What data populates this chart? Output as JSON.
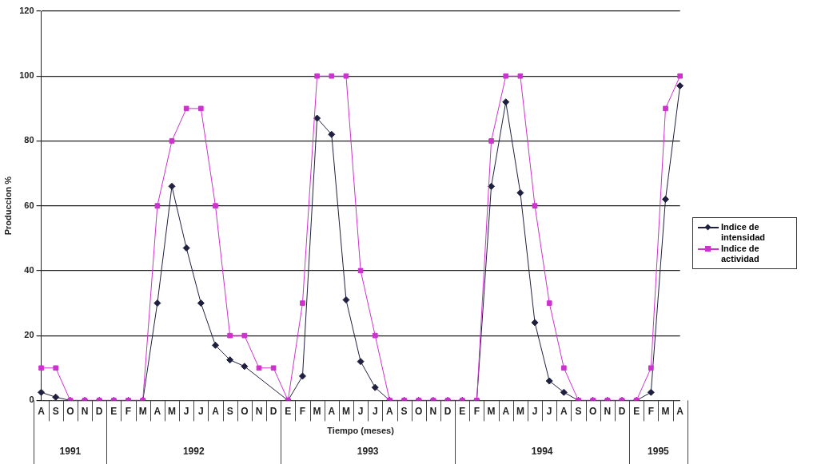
{
  "chart_data": {
    "type": "line",
    "xlabel": "Tiempo (meses)",
    "ylabel": "Produccion %",
    "categories": [
      "A",
      "S",
      "O",
      "N",
      "D",
      "E",
      "F",
      "M",
      "A",
      "M",
      "J",
      "J",
      "A",
      "S",
      "O",
      "N",
      "D",
      "E",
      "F",
      "M",
      "A",
      "M",
      "J",
      "J",
      "A",
      "S",
      "O",
      "N",
      "D",
      "E",
      "F",
      "M",
      "A",
      "M",
      "J",
      "J",
      "A",
      "S",
      "O",
      "N",
      "D",
      "E",
      "F",
      "M",
      "A"
    ],
    "series": [
      {
        "name": "Indice de intensidad",
        "color": "#1f2040",
        "marker": "diamond",
        "values": [
          2.5,
          1,
          0,
          0,
          0,
          0,
          0,
          0,
          30,
          66,
          47,
          30,
          17,
          12.5,
          10.5,
          null,
          null,
          0,
          7.5,
          87,
          82,
          31,
          12,
          4,
          0,
          0,
          0,
          0,
          0,
          0,
          0,
          66,
          92,
          64,
          24,
          6,
          2.5,
          0,
          0,
          0,
          0,
          0,
          2.5,
          62,
          97
        ]
      },
      {
        "name": "Indice de actividad",
        "color": "#cc33cc",
        "marker": "square",
        "values": [
          10,
          10,
          0,
          0,
          0,
          0,
          0,
          0,
          60,
          80,
          90,
          90,
          60,
          20,
          20,
          10,
          10,
          0,
          30,
          100,
          100,
          100,
          40,
          20,
          0,
          0,
          0,
          0,
          0,
          0,
          0,
          80,
          100,
          100,
          60,
          30,
          10,
          0,
          0,
          0,
          0,
          0,
          10,
          90,
          100
        ]
      }
    ],
    "ylim": [
      0,
      120
    ],
    "yticks": [
      0,
      20,
      40,
      60,
      80,
      100,
      120
    ],
    "grid": "y",
    "legend": "right",
    "line_style": "solid",
    "annotations": [
      "1991",
      "1992",
      "1993",
      "1994",
      "1995"
    ]
  }
}
